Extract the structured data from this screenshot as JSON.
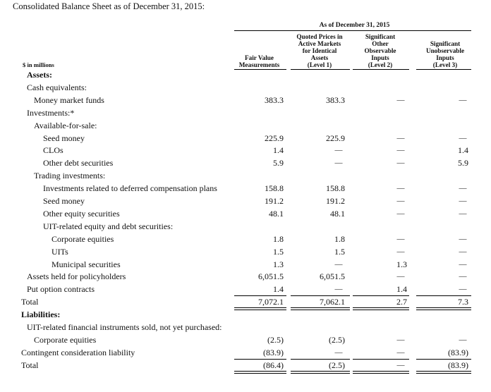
{
  "intro": "Consolidated Balance Sheet as of December 31, 2015:",
  "header": {
    "unit_label": "$ in millions",
    "group_title": "As of December 31, 2015",
    "columns": [
      "Fair Value\nMeasurements",
      "Quoted Prices in\nActive Markets\nfor Identical\nAssets\n(Level 1)",
      "Significant\nOther\nObservable\nInputs\n(Level 2)",
      "Significant\nUnobservable\nInputs\n(Level 3)"
    ]
  },
  "dash": "—",
  "rows": [
    {
      "label": "Assets:",
      "bold": true,
      "indent": 1,
      "vals": [
        "",
        "",
        "",
        ""
      ]
    },
    {
      "label": "Cash equivalents:",
      "indent": 1,
      "vals": [
        "",
        "",
        "",
        ""
      ]
    },
    {
      "label": "Money market funds",
      "indent": 2,
      "vals": [
        "383.3",
        "383.3",
        "—",
        "—"
      ]
    },
    {
      "label": "Investments:*",
      "indent": 1,
      "vals": [
        "",
        "",
        "",
        ""
      ]
    },
    {
      "label": "Available-for-sale:",
      "indent": 2,
      "vals": [
        "",
        "",
        "",
        ""
      ]
    },
    {
      "label": "Seed money",
      "indent": 3,
      "vals": [
        "225.9",
        "225.9",
        "—",
        "—"
      ]
    },
    {
      "label": "CLOs",
      "indent": 3,
      "vals": [
        "1.4",
        "—",
        "—",
        "1.4"
      ]
    },
    {
      "label": "Other debt securities",
      "indent": 3,
      "vals": [
        "5.9",
        "—",
        "—",
        "5.9"
      ]
    },
    {
      "label": "Trading investments:",
      "indent": 2,
      "vals": [
        "",
        "",
        "",
        ""
      ]
    },
    {
      "label": "Investments related to deferred compensation plans",
      "indent": 3,
      "vals": [
        "158.8",
        "158.8",
        "—",
        "—"
      ]
    },
    {
      "label": "Seed money",
      "indent": 3,
      "vals": [
        "191.2",
        "191.2",
        "—",
        "—"
      ]
    },
    {
      "label": "Other equity securities",
      "indent": 3,
      "vals": [
        "48.1",
        "48.1",
        "—",
        "—"
      ]
    },
    {
      "label": "UIT-related equity and debt securities:",
      "indent": 3,
      "vals": [
        "",
        "",
        "",
        ""
      ]
    },
    {
      "label": "Corporate equities",
      "indent": 4,
      "vals": [
        "1.8",
        "1.8",
        "—",
        "—"
      ]
    },
    {
      "label": "UITs",
      "indent": 4,
      "vals": [
        "1.5",
        "1.5",
        "—",
        "—"
      ]
    },
    {
      "label": "Municipal securities",
      "indent": 4,
      "vals": [
        "1.3",
        "—",
        "1.3",
        "—"
      ]
    },
    {
      "label": "Assets held for policyholders",
      "indent": 1,
      "vals": [
        "6,051.5",
        "6,051.5",
        "—",
        "—"
      ]
    },
    {
      "label": "Put option contracts",
      "indent": 1,
      "vals": [
        "1.4",
        "—",
        "1.4",
        "—"
      ]
    },
    {
      "label": "Total",
      "indent": 0,
      "total": true,
      "vals": [
        "7,072.1",
        "7,062.1",
        "2.7",
        "7.3"
      ]
    },
    {
      "label": "Liabilities:",
      "bold": true,
      "indent": 0,
      "vals": [
        "",
        "",
        "",
        ""
      ]
    },
    {
      "label": "UIT-related financial instruments sold, not yet purchased:",
      "indent": 1,
      "vals": [
        "",
        "",
        "",
        ""
      ]
    },
    {
      "label": "Corporate equities",
      "indent": 2,
      "vals": [
        "(2.5)",
        "(2.5)",
        "—",
        "—"
      ]
    },
    {
      "label": "Contingent consideration liability",
      "indent": 0,
      "vals": [
        "(83.9)",
        "—",
        "—",
        "(83.9)"
      ]
    },
    {
      "label": "Total",
      "indent": 0,
      "total": true,
      "vals": [
        "(86.4)",
        "(2.5)",
        "—",
        "(83.9)"
      ]
    }
  ]
}
